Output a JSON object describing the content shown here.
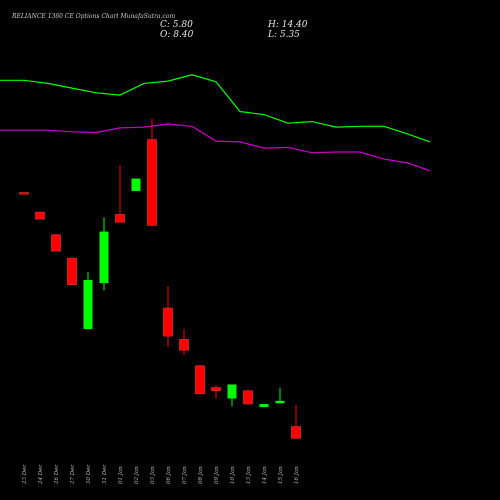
{
  "header": {
    "title": "RELIANCE 1360  CE Options  Chart MunafaSutra.com",
    "close_label": "C: 5.80",
    "open_label": "O: 8.40",
    "high_label": "H: 14.40",
    "low_label": "L: 5.35"
  },
  "colors": {
    "background": "#000000",
    "up_candle": "#00ff00",
    "down_candle": "#ff0000",
    "upper_line": "#00ff00",
    "lower_line": "#cc00cc",
    "axis_text": "#bbbbbb"
  },
  "chart_data": {
    "type": "candlestick",
    "categories": [
      "23 Dec",
      "24 Dec",
      "26 Dec",
      "27 Dec",
      "30 Dec",
      "31 Dec",
      "01 Jan",
      "02 Jan",
      "03 Jan",
      "06 Jan",
      "07 Jan",
      "08 Jan",
      "09 Jan",
      "10 Jan",
      "13 Jan",
      "14 Jan",
      "15 Jan",
      "16 Jan"
    ],
    "candles": [
      {
        "open": 41.0,
        "close": 40.8,
        "high": 41.0,
        "low": 40.8
      },
      {
        "open": 38.5,
        "close": 37.6,
        "high": 38.5,
        "low": 37.6
      },
      {
        "open": 35.6,
        "close": 33.5,
        "high": 35.6,
        "low": 33.5
      },
      {
        "open": 32.6,
        "close": 29.2,
        "high": 32.6,
        "low": 29.2
      },
      {
        "open": 23.5,
        "close": 29.8,
        "high": 30.8,
        "low": 23.5
      },
      {
        "open": 29.4,
        "close": 36.0,
        "high": 37.8,
        "low": 28.5
      },
      {
        "open": 38.2,
        "close": 37.2,
        "high": 44.5,
        "low": 37.2
      },
      {
        "open": 41.2,
        "close": 42.8,
        "high": 42.8,
        "low": 41.2
      },
      {
        "open": 47.8,
        "close": 36.8,
        "high": 50.5,
        "low": 36.8
      },
      {
        "open": 26.2,
        "close": 22.6,
        "high": 29.0,
        "low": 21.2
      },
      {
        "open": 22.2,
        "close": 20.8,
        "high": 23.5,
        "low": 20.2
      },
      {
        "open": 18.8,
        "close": 15.2,
        "high": 18.8,
        "low": 15.2
      },
      {
        "open": 16.0,
        "close": 15.6,
        "high": 16.3,
        "low": 14.6
      },
      {
        "open": 14.6,
        "close": 16.4,
        "high": 16.4,
        "low": 13.6
      },
      {
        "open": 15.6,
        "close": 13.9,
        "high": 15.6,
        "low": 13.9
      },
      {
        "open": 13.5,
        "close": 13.9,
        "high": 13.9,
        "low": 13.5
      },
      {
        "open": 14.0,
        "close": 14.3,
        "high": 16.0,
        "low": 14.0
      },
      {
        "open": 11.0,
        "close": 9.5,
        "high": 13.8,
        "low": 9.5
      }
    ],
    "upper_line": [
      55.4,
      55.4,
      55.0,
      54.4,
      53.8,
      53.5,
      55.0,
      55.3,
      56.1,
      55.2,
      51.4,
      51.0,
      49.9,
      50.1,
      49.4,
      49.5,
      49.5,
      48.5
    ],
    "lower_line": [
      49.0,
      49.0,
      49.0,
      48.8,
      48.7,
      49.3,
      49.4,
      49.8,
      49.5,
      47.6,
      47.5,
      46.7,
      46.8,
      46.1,
      46.2,
      46.2,
      45.3,
      44.8
    ],
    "ylim": [
      8,
      58
    ]
  }
}
